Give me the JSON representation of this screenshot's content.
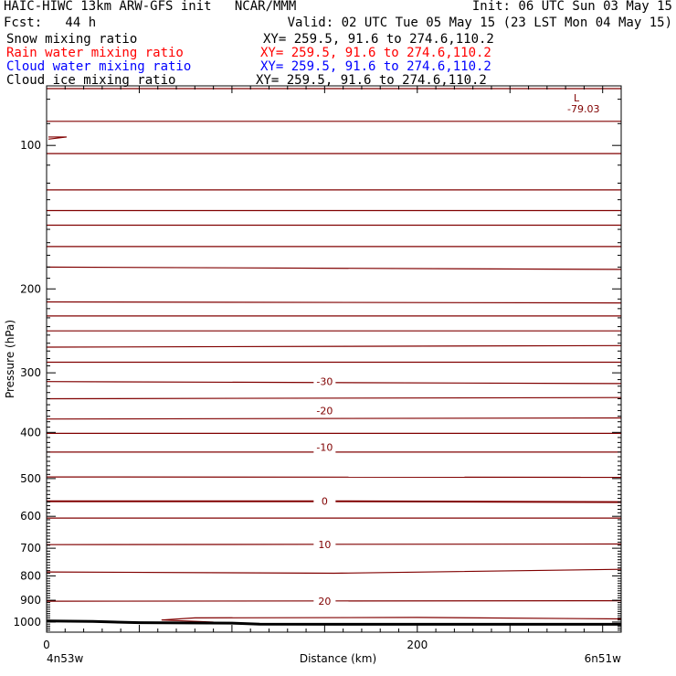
{
  "header": {
    "line1_left": "HAIC-HIWC 13km ARW-GFS init   NCAR/MMM",
    "line1_right": "Init: 06 UTC Sun 03 May 15",
    "line2_left": "Fcst:   44 h",
    "line2_right": "Valid: 02 UTC Tue 05 May 15 (23 LST Mon 04 May 15)"
  },
  "fields": [
    {
      "name": "Snow mixing ratio",
      "xy": "XY= 259.5, 91.6 to 274.6,110.2",
      "color": "#000000"
    },
    {
      "name": "Rain water mixing ratio",
      "xy": "XY= 259.5, 91.6 to 274.6,110.2",
      "color": "#ff0000"
    },
    {
      "name": "Cloud water mixing ratio",
      "xy": "XY= 259.5, 91.6 to 274.6,110.2",
      "color": "#0000ff"
    },
    {
      "name": "Cloud ice mixing ratio",
      "xy": "XY= 259.5, 91.6 to 274.6,110.2",
      "color": "#000000"
    }
  ],
  "chart_data": {
    "type": "line",
    "xlabel": "Distance (km)",
    "ylabel": "Pressure (hPa)",
    "xlim": [
      0,
      310
    ],
    "ylim": [
      1050,
      75
    ],
    "y_scale": "log",
    "x_ticks": [
      0,
      200
    ],
    "y_ticks": [
      100,
      200,
      300,
      400,
      500,
      600,
      700,
      800,
      900,
      1000
    ],
    "x_endpoints": {
      "left": "4n53w",
      "right": "6n51w"
    },
    "contour_color": "#800000",
    "contour_levels_labeled": [
      {
        "label": "-30",
        "pressure": 313,
        "x": 150
      },
      {
        "label": "-20",
        "pressure": 360,
        "x": 150
      },
      {
        "label": "-10",
        "pressure": 430,
        "x": 150
      },
      {
        "label": "0",
        "pressure": 558,
        "x": 150
      },
      {
        "label": "10",
        "pressure": 688,
        "x": 150
      },
      {
        "label": "20",
        "pressure": 904,
        "x": 150
      }
    ],
    "contours": [
      {
        "pressure": [
          76,
          76
        ]
      },
      {
        "pressure": [
          89,
          89
        ]
      },
      {
        "pressure": [
          104,
          104
        ]
      },
      {
        "pressure": [
          124,
          124
        ]
      },
      {
        "pressure": [
          137,
          137
        ]
      },
      {
        "pressure": [
          147,
          147
        ]
      },
      {
        "pressure": [
          163,
          163
        ]
      },
      {
        "pressure": [
          180,
          182
        ]
      },
      {
        "pressure": [
          213,
          214
        ]
      },
      {
        "pressure": [
          228,
          228
        ]
      },
      {
        "pressure": [
          245,
          245
        ]
      },
      {
        "pressure": [
          265,
          263
        ]
      },
      {
        "pressure": [
          285,
          285
        ]
      },
      {
        "pressure": [
          313,
          316
        ]
      },
      {
        "pressure": [
          340,
          338
        ]
      },
      {
        "pressure": [
          375,
          373
        ]
      },
      {
        "pressure": [
          402,
          402
        ]
      },
      {
        "pressure": [
          440,
          440
        ]
      },
      {
        "pressure": [
          496,
          497
        ]
      },
      {
        "pressure": [
          558,
          558,
          560
        ]
      },
      {
        "pressure": [
          605,
          605
        ]
      },
      {
        "pressure": [
          688,
          686
        ]
      },
      {
        "pressure": [
          785,
          790,
          775
        ]
      },
      {
        "pressure": [
          904,
          902
        ]
      }
    ],
    "low_marker": {
      "symbol": "L",
      "value": "-79.03"
    },
    "terrain_pressure": [
      [
        0,
        995
      ],
      [
        25,
        997
      ],
      [
        50,
        1003
      ],
      [
        100,
        1005
      ],
      [
        115,
        1010
      ],
      [
        160,
        1011
      ],
      [
        310,
        1011
      ]
    ]
  }
}
